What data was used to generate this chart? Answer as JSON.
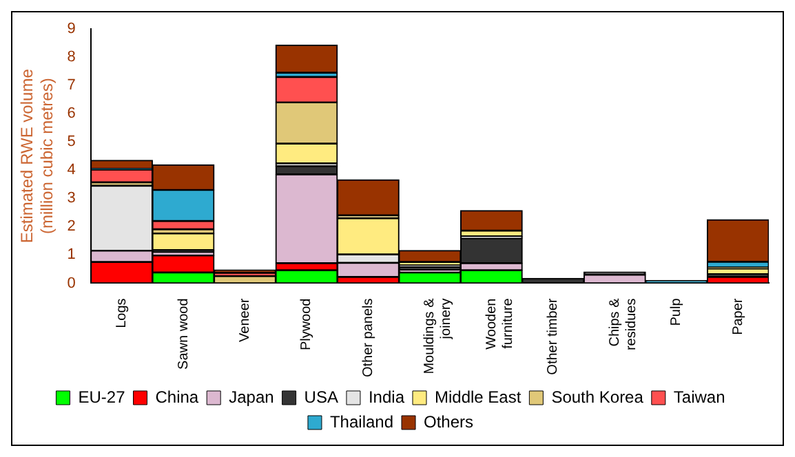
{
  "chart_data": {
    "type": "bar",
    "stacked": true,
    "ylabel": "Estimated RWE volume (million cubic metres)",
    "categories": [
      "Logs",
      "Sawn wood",
      "Veneer",
      "Plywood",
      "Other panels",
      "Mouldings & joinery",
      "Wooden furniture",
      "Other timber",
      "Chips & residues",
      "Pulp",
      "Paper"
    ],
    "ylim": [
      0,
      9
    ],
    "yticks": [
      0,
      1,
      2,
      3,
      4,
      5,
      6,
      7,
      8,
      9
    ],
    "grid": false,
    "legend": "bottom",
    "series": [
      {
        "name": "EU-27",
        "color": "#00ff00",
        "values": [
          0,
          0.38,
          0,
          0.46,
          0,
          0.38,
          0.46,
          0,
          0,
          0,
          0
        ]
      },
      {
        "name": "China",
        "color": "#ff0000",
        "values": [
          0.75,
          0.6,
          0,
          0.25,
          0.22,
          0,
          0,
          0,
          0,
          0,
          0.22
        ]
      },
      {
        "name": "Japan",
        "color": "#dcb8d0",
        "values": [
          0.4,
          0.13,
          0,
          3.14,
          0.5,
          0.1,
          0.25,
          0,
          0.3,
          0,
          0
        ]
      },
      {
        "name": "USA",
        "color": "#333333",
        "values": [
          0,
          0.06,
          0,
          0.29,
          0,
          0.1,
          0.88,
          0.17,
          0.1,
          0,
          0.1
        ]
      },
      {
        "name": "India",
        "color": "#e4e4e4",
        "values": [
          2.3,
          0,
          0,
          0.1,
          0.3,
          0.05,
          0.07,
          0,
          0,
          0,
          0
        ]
      },
      {
        "name": "Middle East",
        "color": "#ffeb80",
        "values": [
          0,
          0.59,
          0,
          0.7,
          1.28,
          0.12,
          0.2,
          0,
          0,
          0,
          0.2
        ]
      },
      {
        "name": "South Korea",
        "color": "#e0c878",
        "values": [
          0.12,
          0.15,
          0.25,
          1.46,
          0.1,
          0,
          0,
          0,
          0,
          0,
          0.04
        ]
      },
      {
        "name": "Taiwan",
        "color": "#ff5050",
        "values": [
          0.45,
          0.29,
          0.12,
          0.9,
          0,
          0,
          0,
          0,
          0,
          0,
          0
        ]
      },
      {
        "name": "Thailand",
        "color": "#2eaad0",
        "values": [
          0.03,
          1.1,
          0,
          0.15,
          0,
          0,
          0,
          0,
          0,
          0.1,
          0.2
        ]
      },
      {
        "name": "Others",
        "color": "#993300",
        "values": [
          0.3,
          0.89,
          0.1,
          0.98,
          1.26,
          0.41,
          0.71,
          0,
          0,
          0,
          1.49
        ]
      }
    ]
  }
}
